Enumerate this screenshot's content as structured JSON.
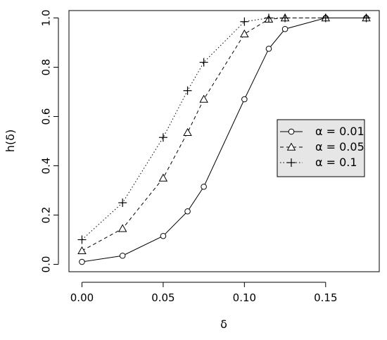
{
  "chart_data": {
    "type": "line",
    "title": "",
    "xlabel": "δ",
    "ylabel": "h(δ)",
    "xlim": [
      -0.008,
      0.183
    ],
    "ylim": [
      -0.03,
      1.03
    ],
    "xticks": [
      0.0,
      0.05,
      0.1,
      0.15
    ],
    "xtick_labels": [
      "0.00",
      "0.05",
      "0.10",
      "0.15"
    ],
    "yticks": [
      0.0,
      0.2,
      0.4,
      0.6,
      0.8,
      1.0
    ],
    "ytick_labels": [
      "0.0",
      "0.2",
      "0.4",
      "0.6",
      "0.8",
      "1.0"
    ],
    "grid": false,
    "legend_position": "right",
    "series": [
      {
        "name": "α = 0.01",
        "marker": "circle",
        "linestyle": "solid",
        "color": "#000000",
        "points": [
          {
            "x": 0.0,
            "y": 0.01
          },
          {
            "x": 0.025,
            "y": 0.035
          },
          {
            "x": 0.05,
            "y": 0.115
          },
          {
            "x": 0.065,
            "y": 0.215
          },
          {
            "x": 0.075,
            "y": 0.315
          },
          {
            "x": 0.1,
            "y": 0.67
          },
          {
            "x": 0.115,
            "y": 0.875
          },
          {
            "x": 0.125,
            "y": 0.955
          },
          {
            "x": 0.15,
            "y": 1.0
          },
          {
            "x": 0.175,
            "y": 1.0
          }
        ]
      },
      {
        "name": "α = 0.05",
        "marker": "triangle",
        "linestyle": "dashed",
        "color": "#000000",
        "points": [
          {
            "x": 0.0,
            "y": 0.055
          },
          {
            "x": 0.025,
            "y": 0.145
          },
          {
            "x": 0.05,
            "y": 0.35
          },
          {
            "x": 0.065,
            "y": 0.535
          },
          {
            "x": 0.075,
            "y": 0.67
          },
          {
            "x": 0.1,
            "y": 0.935
          },
          {
            "x": 0.115,
            "y": 0.995
          },
          {
            "x": 0.125,
            "y": 1.0
          },
          {
            "x": 0.15,
            "y": 1.0
          },
          {
            "x": 0.175,
            "y": 1.0
          }
        ]
      },
      {
        "name": "α = 0.1",
        "marker": "plus",
        "linestyle": "dotted",
        "color": "#000000",
        "points": [
          {
            "x": 0.0,
            "y": 0.1
          },
          {
            "x": 0.025,
            "y": 0.25
          },
          {
            "x": 0.05,
            "y": 0.515
          },
          {
            "x": 0.065,
            "y": 0.705
          },
          {
            "x": 0.075,
            "y": 0.82
          },
          {
            "x": 0.1,
            "y": 0.985
          },
          {
            "x": 0.115,
            "y": 1.0
          },
          {
            "x": 0.125,
            "y": 1.0
          },
          {
            "x": 0.15,
            "y": 1.0
          },
          {
            "x": 0.175,
            "y": 1.0
          }
        ]
      }
    ],
    "legend_background": "#e6e6e6"
  }
}
